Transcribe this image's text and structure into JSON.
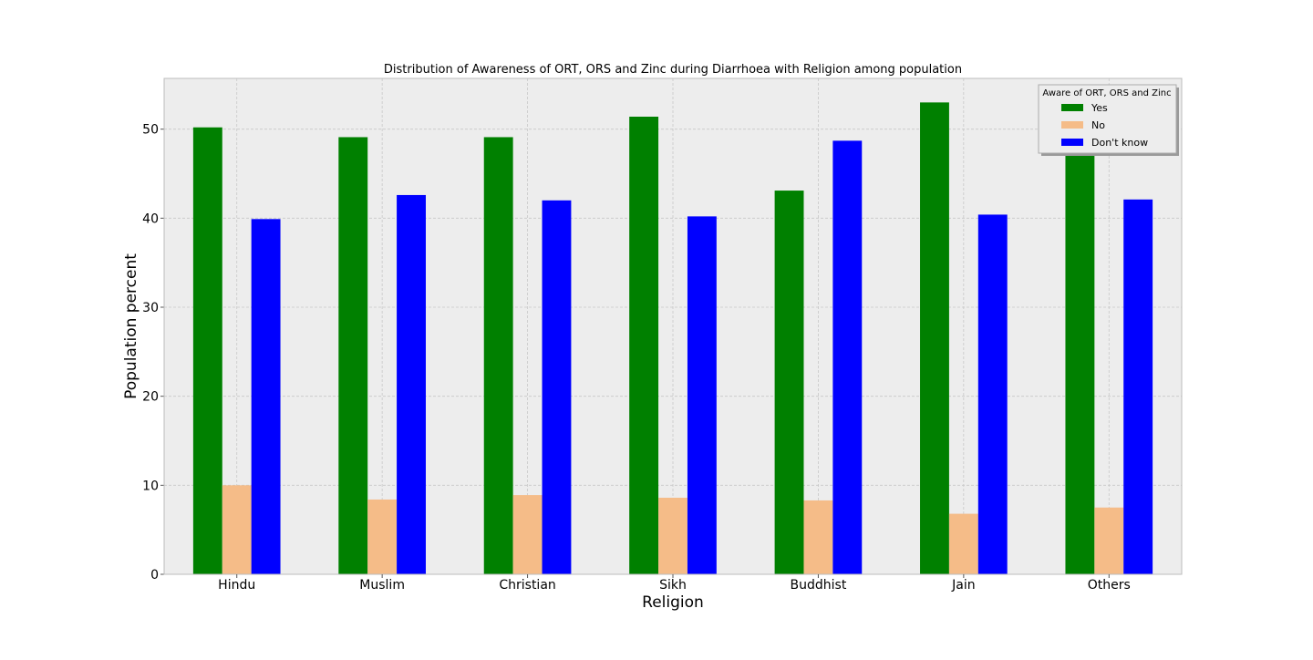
{
  "chart_data": {
    "type": "bar",
    "title": "Distribution of Awareness of ORT, ORS and Zinc during Diarrhoea with Religion among population",
    "xlabel": "Religion",
    "ylabel": "Population percent",
    "categories": [
      "Hindu",
      "Muslim",
      "Christian",
      "Sikh",
      "Buddhist",
      "Jain",
      "Others"
    ],
    "series": [
      {
        "name": "Yes",
        "color": "#008000",
        "values": [
          50.2,
          49.1,
          49.1,
          51.4,
          43.1,
          53.0,
          50.5
        ]
      },
      {
        "name": "No",
        "color": "#f5bc88",
        "values": [
          10.0,
          8.4,
          8.9,
          8.6,
          8.3,
          6.8,
          7.5
        ]
      },
      {
        "name": "Don't know",
        "color": "#0000ff",
        "values": [
          39.9,
          42.6,
          42.0,
          40.2,
          48.7,
          40.4,
          42.1
        ]
      }
    ],
    "ylim": [
      0,
      55.7
    ],
    "yticks": [
      0,
      10,
      20,
      30,
      40,
      50
    ],
    "legend": {
      "title": "Aware of ORT, ORS and Zinc",
      "placement": "top-right"
    },
    "grid": true,
    "colors": {
      "plot_background": "#ededed",
      "grid": "#c8c8c8",
      "axes_edge": "#bcbcbc"
    }
  }
}
